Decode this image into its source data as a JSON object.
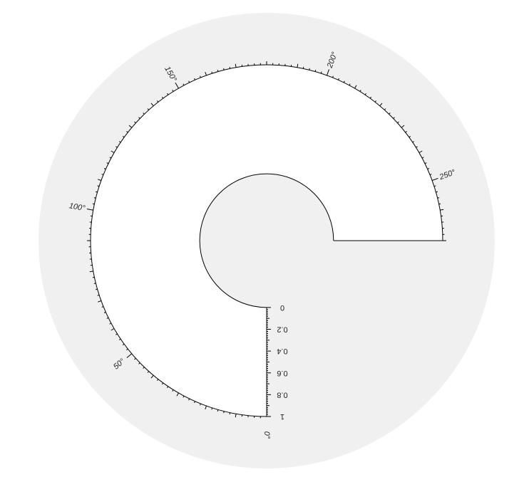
{
  "chart_data": {
    "type": "polar-sector",
    "theta_range_deg": [
      0,
      270
    ],
    "theta_ticks": [
      0,
      50,
      100,
      150,
      200,
      250
    ],
    "theta_tick_labels": [
      "0°",
      "50°",
      "100°",
      "150°",
      "200°",
      "250°"
    ],
    "r_range": [
      0,
      1
    ],
    "r_ticks": [
      0,
      0.2,
      0.4,
      0.6,
      0.8,
      1
    ],
    "r_tick_labels": [
      "0",
      "0.2",
      "0.4",
      "0.6",
      "0.8",
      "1"
    ],
    "hole_fraction": 0.38,
    "direction": "clockwise",
    "zero_location": "bottom",
    "colors": {
      "polar_background": "#f0f0f0",
      "sector_fill": "#ffffff",
      "line": "#000000"
    }
  }
}
